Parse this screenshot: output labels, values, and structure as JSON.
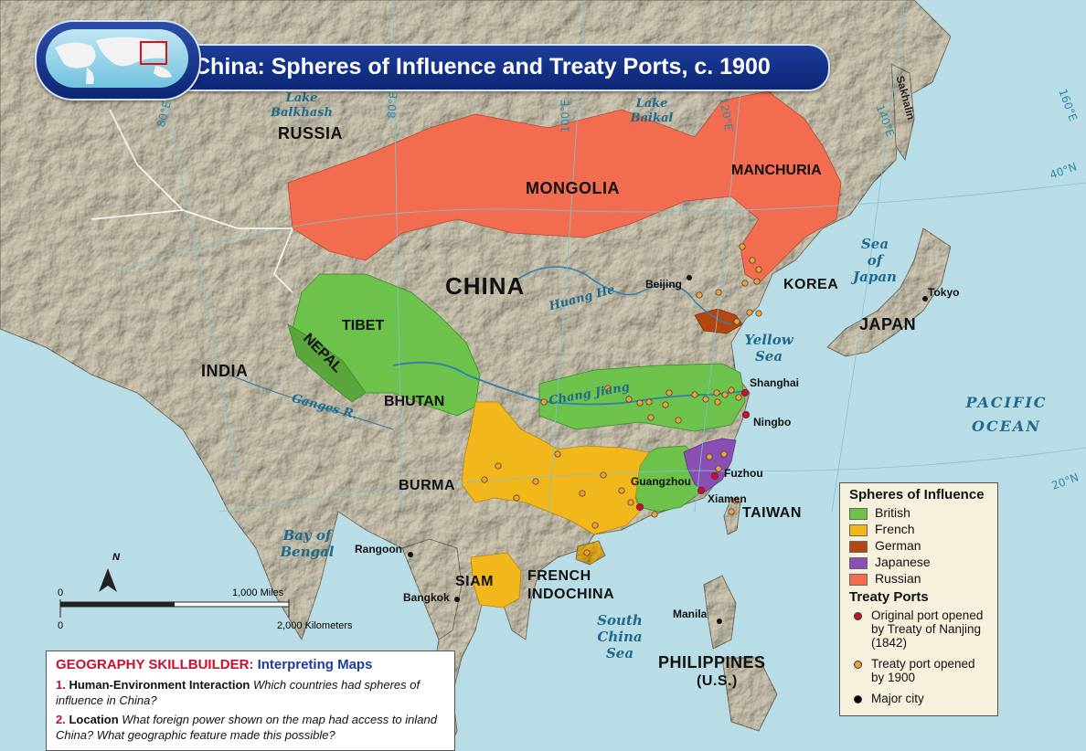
{
  "title": "China: Spheres of Influence and Treaty Ports, c. 1900",
  "labels": {
    "russia": "RUSSIA",
    "mongolia": "MONGOLIA",
    "manchuria": "MANCHURIA",
    "china": "CHINA",
    "tibet": "TIBET",
    "nepal": "NEPAL",
    "bhutan": "BHUTAN",
    "india": "INDIA",
    "burma": "BURMA",
    "siam": "SIAM",
    "french_indochina_1": "FRENCH",
    "french_indochina_2": "INDOCHINA",
    "korea": "KOREA",
    "japan": "JAPAN",
    "taiwan": "TAIWAN",
    "philippines_1": "PHILIPPINES",
    "philippines_2": "(U.S.)"
  },
  "water": {
    "lake_balkhash_1": "Lake",
    "lake_balkhash_2": "Balkhash",
    "lake_baikal_1": "Lake",
    "lake_baikal_2": "Baikal",
    "huang_he": "Huang He",
    "chang_jiang": "Chang Jiang",
    "ganges": "Ganges R.",
    "yellow_sea_1": "Yellow",
    "yellow_sea_2": "Sea",
    "sea_of_japan_1": "Sea",
    "sea_of_japan_2": "of",
    "sea_of_japan_3": "Japan",
    "pacific_1": "PACIFIC",
    "pacific_2": "OCEAN",
    "bay_of_bengal_1": "Bay of",
    "bay_of_bengal_2": "Bengal",
    "south_china_sea_1": "South",
    "south_china_sea_2": "China",
    "south_china_sea_3": "Sea",
    "sakhalin": "Sakhalin"
  },
  "cities": {
    "beijing": "Beijing",
    "shanghai": "Shanghai",
    "ningbo": "Ningbo",
    "fuzhou": "Fuzhou",
    "xiamen": "Xiamen",
    "guangzhou": "Guangzhou",
    "tokyo": "Tokyo",
    "rangoon": "Rangoon",
    "bangkok": "Bangkok",
    "manila": "Manila"
  },
  "graticule": {
    "lon80": "80°E",
    "lon100": "100°E",
    "lon120": "120°E",
    "lon140": "140°E",
    "lon160": "160°E",
    "lat40": "40°N",
    "lat20": "20°N",
    "lon80b": "80°E"
  },
  "scale": {
    "zero_top": "0",
    "miles": "1,000 Miles",
    "zero_bottom": "0",
    "km": "2,000 Kilometers",
    "north": "N"
  },
  "legend": {
    "spheres_title": "Spheres of Influence",
    "items": [
      {
        "label": "British",
        "color": "#6cc24a"
      },
      {
        "label": "French",
        "color": "#f2b81b"
      },
      {
        "label": "German",
        "color": "#b4470f"
      },
      {
        "label": "Japanese",
        "color": "#8a4fb3"
      },
      {
        "label": "Russian",
        "color": "#f26d4f"
      }
    ],
    "ports_title": "Treaty Ports",
    "original_port": "Original port opened by Treaty of Nanjing (1842)",
    "treaty_port": "Treaty port opened by 1900",
    "major_city": "Major city",
    "colors": {
      "original": "#c8102e",
      "treaty": "#f0a03a",
      "city": "#000000"
    }
  },
  "skillbuilder": {
    "heading_red": "GEOGRAPHY SKILLBUILDER:",
    "heading_blue": "Interpreting Maps",
    "q1_num": "1.",
    "q1_topic": "Human-Environment Interaction",
    "q1_text": "Which countries had spheres of influence in China?",
    "q2_num": "2.",
    "q2_topic": "Location",
    "q2_text": "What foreign power shown on the map had access to inland China? What geographic feature made this possible?"
  }
}
